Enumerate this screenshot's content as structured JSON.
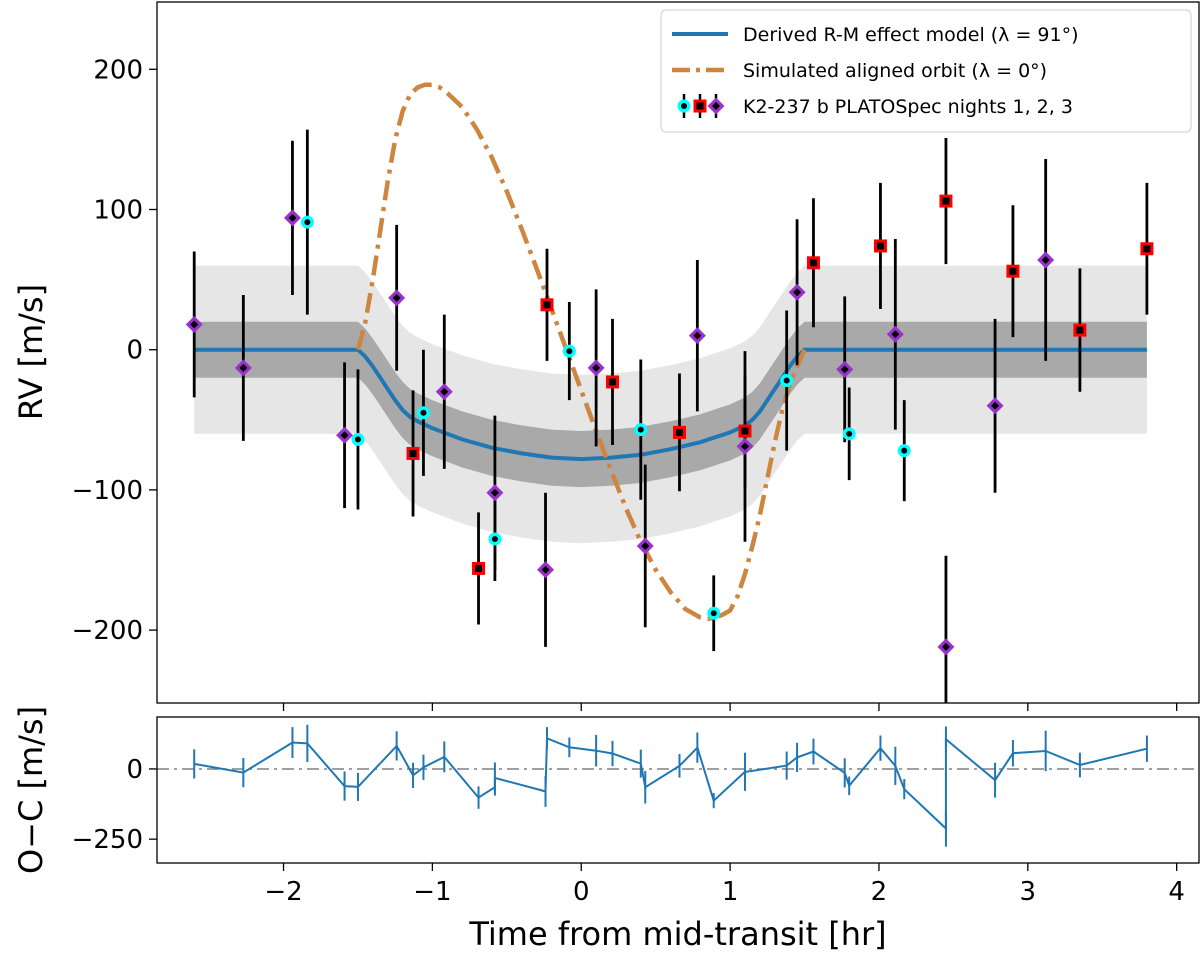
{
  "chart_data": {
    "type": "scatter",
    "xlabel": "Time from mid-transit [hr]",
    "top_panel": {
      "ylabel": "RV [m/s]",
      "xlim": [
        -2.85,
        4.15
      ],
      "ylim": [
        -252,
        248
      ],
      "yticks": [
        200,
        100,
        0,
        -100,
        -200
      ],
      "ytick_labels": [
        "200",
        "100",
        "0",
        "−100",
        "−200"
      ],
      "legend_position": "top-right",
      "legend": {
        "model": "Derived R-M effect model (λ = 91°)",
        "aligned": "Simulated aligned orbit (λ = 0°)",
        "data": "K2-237 b PLATOSpec nights 1, 2, 3"
      },
      "colors": {
        "model": "#1f77b4",
        "aligned": "#cd853f",
        "band_inner": "#a9a9a9",
        "band_outer": "#e6e6e6",
        "night1_face": "#00ffff",
        "night2_face": "#ff0000",
        "night3_face": "#9932cc",
        "marker_center": "#000000"
      },
      "model_curve": {
        "x": [
          -2.6,
          -1.5,
          -1.45,
          -1.4,
          -1.35,
          -1.3,
          -1.25,
          -1.2,
          -1.15,
          -1.1,
          -1.0,
          -0.8,
          -0.6,
          -0.4,
          -0.2,
          0.0,
          0.2,
          0.4,
          0.6,
          0.8,
          1.0,
          1.1,
          1.15,
          1.2,
          1.25,
          1.3,
          1.35,
          1.4,
          1.45,
          1.5,
          3.8
        ],
        "y": [
          0,
          0,
          -5,
          -12,
          -20,
          -28,
          -36,
          -43,
          -48,
          -51,
          -56,
          -64,
          -70,
          -74,
          -77,
          -78,
          -77,
          -75,
          -71,
          -66,
          -59,
          -54,
          -50,
          -44,
          -36,
          -28,
          -20,
          -12,
          -5,
          0,
          0
        ]
      },
      "band_inner_halfwidth": 20,
      "band_outer_halfwidth": 60,
      "aligned_curve": {
        "x": [
          -1.5,
          -1.45,
          -1.4,
          -1.35,
          -1.3,
          -1.25,
          -1.2,
          -1.15,
          -1.1,
          -1.05,
          -1.0,
          -0.95,
          -0.9,
          -0.8,
          -0.7,
          -0.6,
          -0.5,
          -0.4,
          -0.3,
          -0.2,
          -0.1,
          0.0,
          0.1,
          0.2,
          0.3,
          0.4,
          0.5,
          0.6,
          0.7,
          0.8,
          0.85,
          0.9,
          0.95,
          1.0,
          1.05,
          1.1,
          1.15,
          1.2,
          1.25,
          1.3,
          1.35,
          1.4,
          1.45,
          1.5
        ],
        "y": [
          0,
          20,
          50,
          85,
          120,
          150,
          170,
          182,
          187,
          189,
          189,
          187,
          183,
          173,
          157,
          137,
          113,
          86,
          58,
          29,
          0,
          -29,
          -58,
          -86,
          -113,
          -137,
          -157,
          -173,
          -185,
          -191,
          -192,
          -191,
          -189,
          -186,
          -176,
          -160,
          -140,
          -118,
          -92,
          -66,
          -43,
          -25,
          -12,
          0
        ]
      },
      "night1": [
        {
          "x": -1.84,
          "y": 91,
          "err": 66
        },
        {
          "x": -1.5,
          "y": -64,
          "err": 50
        },
        {
          "x": -1.06,
          "y": -45,
          "err": 45
        },
        {
          "x": -0.58,
          "y": -135,
          "err": 30
        },
        {
          "x": -0.08,
          "y": -1,
          "err": 35
        },
        {
          "x": 0.4,
          "y": -57,
          "err": 50
        },
        {
          "x": 0.89,
          "y": -188,
          "err": 27
        },
        {
          "x": 1.38,
          "y": -22,
          "err": 50
        },
        {
          "x": 1.8,
          "y": -60,
          "err": 33
        },
        {
          "x": 2.17,
          "y": -72,
          "err": 36
        }
      ],
      "night2": [
        {
          "x": -1.13,
          "y": -74,
          "err": 45
        },
        {
          "x": -0.69,
          "y": -156,
          "err": 40
        },
        {
          "x": -0.23,
          "y": 32,
          "err": 40
        },
        {
          "x": 0.21,
          "y": -23,
          "err": 45
        },
        {
          "x": 0.66,
          "y": -59,
          "err": 42
        },
        {
          "x": 1.1,
          "y": -58,
          "err": 40
        },
        {
          "x": 1.56,
          "y": 62,
          "err": 46
        },
        {
          "x": 2.01,
          "y": 74,
          "err": 45
        },
        {
          "x": 2.45,
          "y": 106,
          "err": 45
        },
        {
          "x": 2.9,
          "y": 56,
          "err": 47
        },
        {
          "x": 3.35,
          "y": 14,
          "err": 44
        },
        {
          "x": 3.8,
          "y": 72,
          "err": 47
        }
      ],
      "night3": [
        {
          "x": -2.6,
          "y": 18,
          "err": 52
        },
        {
          "x": -2.27,
          "y": -13,
          "err": 52
        },
        {
          "x": -1.94,
          "y": 94,
          "err": 55
        },
        {
          "x": -1.59,
          "y": -61,
          "err": 52
        },
        {
          "x": -1.24,
          "y": 37,
          "err": 52
        },
        {
          "x": -0.92,
          "y": -30,
          "err": 55
        },
        {
          "x": -0.58,
          "y": -102,
          "err": 55
        },
        {
          "x": -0.24,
          "y": -157,
          "err": 55
        },
        {
          "x": 0.1,
          "y": -13,
          "err": 56
        },
        {
          "x": 0.43,
          "y": -140,
          "err": 58
        },
        {
          "x": 0.78,
          "y": 10,
          "err": 54
        },
        {
          "x": 1.1,
          "y": -69,
          "err": 68
        },
        {
          "x": 1.45,
          "y": 41,
          "err": 52
        },
        {
          "x": 1.77,
          "y": -14,
          "err": 52
        },
        {
          "x": 2.11,
          "y": 11,
          "err": 68
        },
        {
          "x": 2.45,
          "y": -212,
          "err": 65
        },
        {
          "x": 2.78,
          "y": -40,
          "err": 62
        },
        {
          "x": 3.12,
          "y": 64,
          "err": 72
        }
      ]
    },
    "bottom_panel": {
      "ylabel": "O−C [m/s]",
      "ylim": [
        -335,
        185
      ],
      "yticks": [
        0,
        -250
      ],
      "ytick_labels": [
        "0",
        "−250"
      ],
      "xticks": [
        -2,
        -1,
        0,
        1,
        2,
        3,
        4
      ],
      "xtick_labels": [
        "−2",
        "−1",
        "0",
        "1",
        "2",
        "3",
        "4"
      ],
      "colors": {
        "line": "#1f77b4",
        "zero_line": "#808080"
      },
      "residuals": {
        "x": [
          -2.6,
          -2.27,
          -1.94,
          -1.84,
          -1.59,
          -1.5,
          -1.24,
          -1.13,
          -1.06,
          -0.92,
          -0.69,
          -0.58,
          -0.58,
          -0.24,
          -0.23,
          -0.08,
          0.1,
          0.21,
          0.4,
          0.43,
          0.66,
          0.78,
          0.89,
          1.1,
          1.1,
          1.38,
          1.45,
          1.56,
          1.77,
          1.8,
          2.01,
          2.11,
          2.17,
          2.45,
          2.45,
          2.78,
          2.9,
          3.12,
          3.35,
          3.8
        ],
        "y": [
          18,
          -13,
          94,
          91,
          -61,
          -64,
          82,
          -23,
          6,
          43,
          -102,
          -65,
          -32,
          -80,
          109,
          77,
          65,
          55,
          19,
          -65,
          11,
          76,
          -113,
          -10,
          -11,
          12,
          41,
          62,
          -14,
          -60,
          74,
          11,
          -72,
          -212,
          106,
          -40,
          56,
          64,
          14,
          72
        ],
        "err": [
          52,
          52,
          55,
          66,
          52,
          50,
          52,
          45,
          45,
          55,
          40,
          30,
          55,
          55,
          40,
          35,
          56,
          45,
          50,
          58,
          42,
          54,
          27,
          68,
          40,
          50,
          52,
          46,
          52,
          33,
          45,
          68,
          36,
          65,
          45,
          62,
          47,
          72,
          44,
          47
        ]
      }
    }
  }
}
